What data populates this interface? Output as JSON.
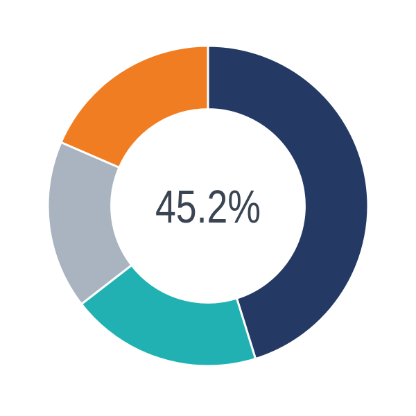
{
  "chart": {
    "background_color": "#FFFFFF",
    "separator_color": "#FFFFFF",
    "center_label_color": "#3A4452"
  },
  "chart_data": {
    "type": "pie",
    "subtype": "donut",
    "title": "",
    "center_label": "45.2%",
    "start_angle_deg": 0,
    "direction": "clockwise",
    "inner_radius_ratio": 0.6,
    "legend": "none",
    "segments": [
      {
        "name": "navy",
        "value": 45.2,
        "color": "#243A64"
      },
      {
        "name": "teal",
        "value": 19.3,
        "color": "#21B1B2"
      },
      {
        "name": "gray",
        "value": 17.0,
        "color": "#A9B4C0"
      },
      {
        "name": "orange",
        "value": 18.5,
        "color": "#F07D22"
      }
    ]
  }
}
